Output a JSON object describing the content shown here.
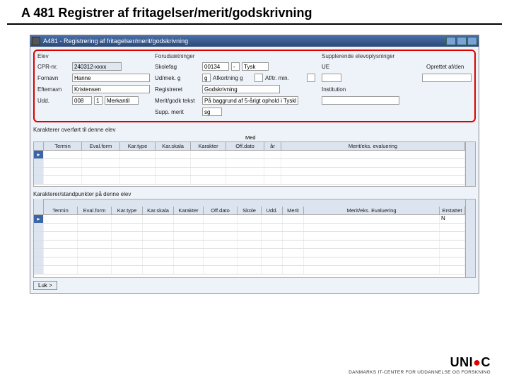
{
  "page": {
    "title": "A 481 Registrer af fritagelser/merit/godskrivning"
  },
  "window": {
    "title": "A481 - Registrering af fritagelser/merit/godskrivning"
  },
  "groups": {
    "elev": "Elev",
    "forudsat": "Forudsætninger",
    "supp": "Supplerende elevoplysninger"
  },
  "elev": {
    "cpr_lbl": "CPR-nr.",
    "cpr": "240312-xxxx",
    "fornavn_lbl": "Fornavn",
    "fornavn": "Hanne",
    "efternavn_lbl": "Efternavn",
    "efternavn": "Kristensen",
    "udd_lbl": "Udd.",
    "udd1": "008",
    "udd2": "1",
    "udd3": "Merkantil"
  },
  "forud": {
    "skolefag_lbl": "Skolefag",
    "skolefag1": "00134",
    "skolefag2": "-",
    "skolefag3": "Tysk",
    "udmek_lbl": "Ud/mek. g",
    "udmek": "g",
    "afkort_lbl": "Afkortning g",
    "afkort": "",
    "afkt_lbl": "Af/tr. min.",
    "afkt": "",
    "reg_lbl": "Registreret",
    "reg": "Godskrivning",
    "protokol_lbl": "Merit/godk tekst",
    "protokol": "På baggrund af 5-årigt ophold i Tyskland",
    "supp_lbl": "Supp. merit",
    "supp": "sg"
  },
  "suppcol": {
    "ue_lbl": "UE",
    "opret_lbl": "Oprettet af/den",
    "inst_lbl": "Institution"
  },
  "grid1": {
    "title": "Karakterer overført til denne elev",
    "med": "Med",
    "cols": [
      "Termin",
      "Eval.form",
      "Kar.type",
      "Kar.skala",
      "Karakter",
      "Off.dato",
      "år",
      "Merit/eks. evaluering"
    ]
  },
  "grid2": {
    "title": "Karakterer/standpunkter på denne elev",
    "cols": [
      "Termin",
      "Eval.form",
      "Kar.type",
      "Kar.skala",
      "Karakter",
      "Off.dato",
      "Skole",
      "Udd.",
      "Merit",
      "Merit/eks. Evaluering",
      "Erstattet"
    ],
    "N": "N"
  },
  "button": {
    "afbryd": "Luk >"
  },
  "logo": {
    "main1": "UNI",
    "main2": "C",
    "sub": "DANMARKS IT-CENTER FOR UDDANNELSE OG FORSKNING"
  }
}
